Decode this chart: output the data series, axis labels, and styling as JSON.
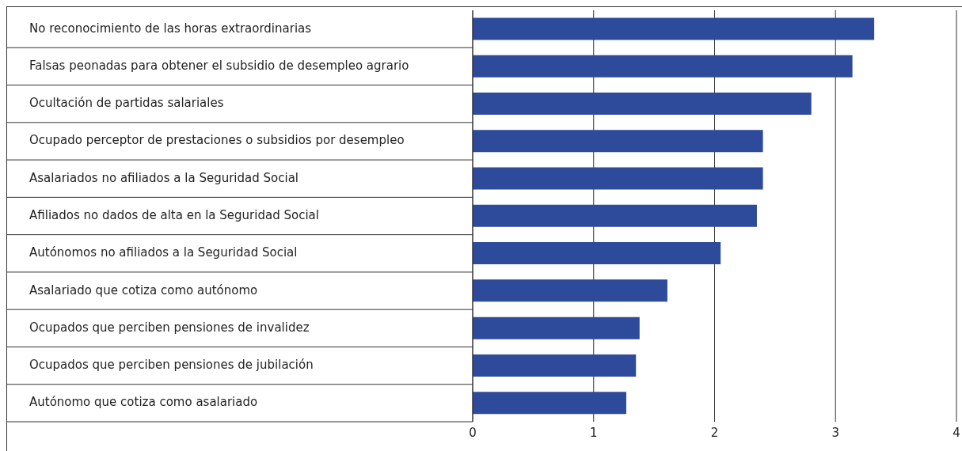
{
  "chart_data": {
    "type": "bar",
    "orientation": "horizontal",
    "categories": [
      "No reconocimiento de las horas extraordinarias",
      "Falsas peonadas para obtener el subsidio de desempleo agrario",
      "Ocultación de partidas salariales",
      "Ocupado perceptor de prestaciones o subsidios por desempleo",
      "Asalariados no afiliados a la Seguridad Social",
      "Afiliados no dados de alta en la Seguridad Social",
      "Autónomos no afiliados a la Seguridad Social",
      "Asalariado que cotiza como autónomo",
      "Ocupados que perciben pensiones de invalidez",
      "Ocupados que perciben pensiones de jubilación",
      "Autónomo que cotiza como asalariado"
    ],
    "values": [
      3.32,
      3.14,
      2.8,
      2.4,
      2.4,
      2.35,
      2.05,
      1.61,
      1.38,
      1.35,
      1.27
    ],
    "color": "#2e4a9b",
    "xlim": [
      0,
      4
    ],
    "xticks": [
      0,
      1,
      2,
      3,
      4
    ],
    "grid": "x"
  }
}
